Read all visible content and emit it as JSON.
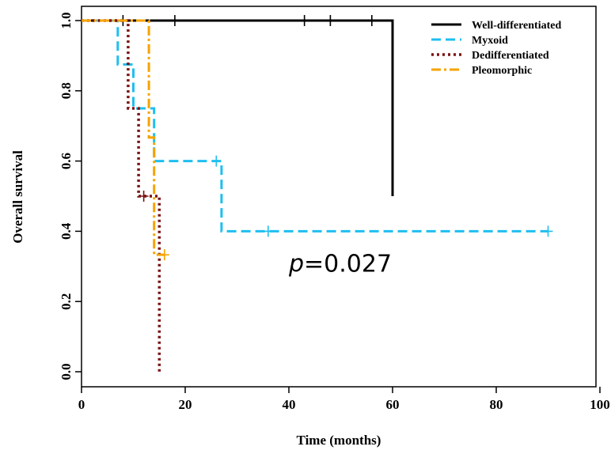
{
  "chart_data": {
    "type": "line",
    "title": "",
    "xlabel": "Time (months)",
    "ylabel": "Overall survival",
    "xlim": [
      0,
      100
    ],
    "ylim": [
      0,
      1
    ],
    "xticks": [
      0,
      20,
      40,
      60,
      80,
      100
    ],
    "yticks": [
      0.0,
      0.2,
      0.4,
      0.6,
      0.8,
      1.0
    ],
    "xtick_labels": [
      "0",
      "20",
      "40",
      "60",
      "80",
      "100"
    ],
    "ytick_labels": [
      "0.0",
      "0.2",
      "0.4",
      "0.6",
      "0.8",
      "1.0"
    ],
    "legend_position": "top-right",
    "annotation": {
      "p_label": "p",
      "p_value": "=0.027",
      "x": 40,
      "y": 0.31
    },
    "series": [
      {
        "name": "Well-differentiated",
        "color": "#000000",
        "style": "solid",
        "steps": [
          [
            0,
            1.0
          ],
          [
            60,
            1.0
          ],
          [
            60,
            0.5
          ]
        ],
        "censored": [
          [
            8,
            1.0
          ],
          [
            18,
            1.0
          ],
          [
            43,
            1.0
          ],
          [
            48,
            1.0
          ],
          [
            56,
            1.0
          ]
        ]
      },
      {
        "name": "Myxoid",
        "color": "#1EBFF0",
        "style": "dashed",
        "steps": [
          [
            0,
            1.0
          ],
          [
            7,
            1.0
          ],
          [
            7,
            0.875
          ],
          [
            10,
            0.875
          ],
          [
            10,
            0.75
          ],
          [
            14,
            0.75
          ],
          [
            14,
            0.6
          ],
          [
            27,
            0.6
          ],
          [
            27,
            0.4
          ],
          [
            90,
            0.4
          ]
        ],
        "censored": [
          [
            26,
            0.6
          ],
          [
            36,
            0.4
          ],
          [
            90,
            0.4
          ]
        ]
      },
      {
        "name": "Dedifferentiated",
        "color": "#7A1010",
        "style": "dotted",
        "steps": [
          [
            0,
            1.0
          ],
          [
            9,
            1.0
          ],
          [
            9,
            0.75
          ],
          [
            11,
            0.75
          ],
          [
            11,
            0.5
          ],
          [
            15,
            0.5
          ],
          [
            15,
            0.0
          ]
        ],
        "censored": [
          [
            12,
            0.5
          ]
        ]
      },
      {
        "name": "Pleomorphic",
        "color": "#F5A300",
        "style": "dashdot",
        "steps": [
          [
            0,
            1.0
          ],
          [
            13,
            1.0
          ],
          [
            13,
            0.667
          ],
          [
            14,
            0.667
          ],
          [
            14,
            0.333
          ],
          [
            16,
            0.333
          ]
        ],
        "censored": [
          [
            16,
            0.333
          ]
        ]
      }
    ]
  }
}
